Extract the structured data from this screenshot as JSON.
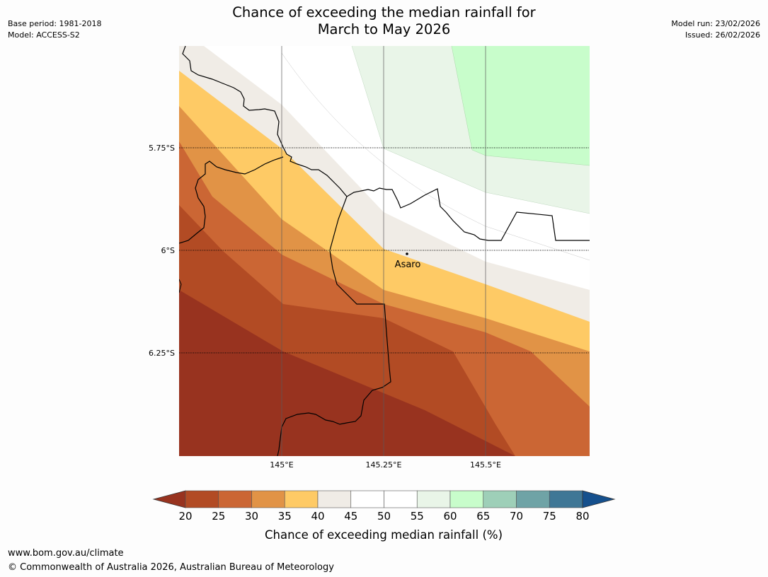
{
  "header": {
    "title_line1": "Chance of exceeding the median rainfall for",
    "title_line2": "March to May 2026",
    "base_period": "Base period: 1981-2018",
    "model": "Model: ACCESS-S2",
    "model_run": "Model run: 23/02/2026",
    "issued": "Issued: 26/02/2026"
  },
  "map": {
    "lat_labels": [
      "5.75°S",
      "6°S",
      "6.25°S"
    ],
    "lon_labels": [
      "145°E",
      "145.25°E",
      "145.5°E"
    ],
    "place": {
      "name": "Asaro"
    }
  },
  "legend": {
    "title": "Chance of exceeding median rainfall (%)",
    "ticks": [
      "20",
      "25",
      "30",
      "35",
      "40",
      "45",
      "50",
      "55",
      "60",
      "65",
      "70",
      "75",
      "80"
    ],
    "colors": {
      "below_20": "#98331f",
      "20_25": "#b24b24",
      "25_30": "#cb6634",
      "30_35": "#e19346",
      "35_40": "#feca65",
      "40_45": "#f0ece6",
      "45_50": "#ffffff",
      "50_55": "#ffffff",
      "55_60": "#e9f5e8",
      "60_65": "#c8fdcb",
      "65_70": "#9ecfb8",
      "70_75": "#6fa3a6",
      "75_80": "#3f7796",
      "above_80": "#15508d"
    }
  },
  "footer": {
    "url": "www.bom.gov.au/climate",
    "copyright": "© Commonwealth of Australia 2026, Australian Bureau of Meteorology"
  }
}
